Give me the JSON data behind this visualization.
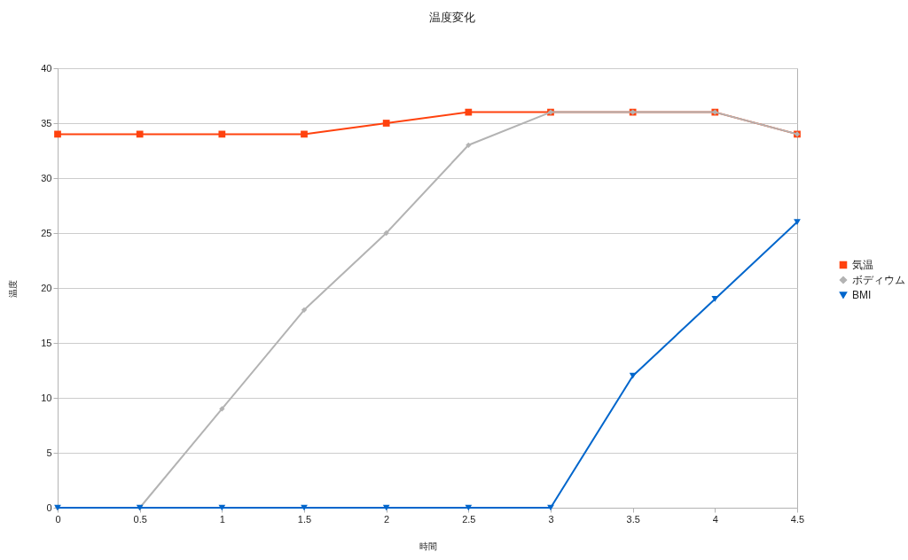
{
  "chart_data": {
    "type": "line",
    "title": "温度変化",
    "xlabel": "時間",
    "ylabel": "温度",
    "x": [
      0,
      0.5,
      1,
      1.5,
      2,
      2.5,
      3,
      3.5,
      4,
      4.5
    ],
    "xlim": [
      0,
      4.5
    ],
    "xticks": [
      0,
      0.5,
      1,
      1.5,
      2,
      2.5,
      3,
      3.5,
      4,
      4.5
    ],
    "ylim": [
      0,
      40
    ],
    "yticks": [
      0,
      5,
      10,
      15,
      20,
      25,
      30,
      35,
      40
    ],
    "grid": "y",
    "legend": "right",
    "line_style": "solid",
    "series": [
      {
        "name": "気温",
        "color": "#ff420e",
        "marker": "square",
        "values": [
          34,
          34,
          34,
          34,
          35,
          36,
          36,
          36,
          36,
          34
        ]
      },
      {
        "name": "ボディウム",
        "color": "#b3b3b3",
        "marker": "diamond",
        "values": [
          0,
          0,
          9,
          18,
          25,
          33,
          36,
          36,
          36,
          34
        ]
      },
      {
        "name": "BMI",
        "color": "#0066cc",
        "marker": "triangle",
        "values": [
          0,
          0,
          0,
          0,
          0,
          0,
          0,
          12,
          19,
          26
        ]
      }
    ]
  }
}
